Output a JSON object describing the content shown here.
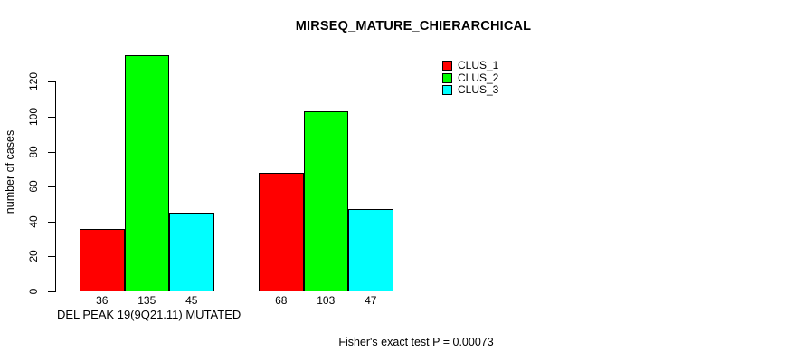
{
  "chart_data": {
    "type": "bar",
    "title": "MIRSEQ_MATURE_CHIERARCHICAL",
    "ylabel": "number of cases",
    "xlabel": "DEL PEAK 19(9Q21.11) MUTATED",
    "ylim": [
      0,
      140
    ],
    "yticks": [
      0,
      20,
      40,
      60,
      80,
      100,
      120
    ],
    "grid": false,
    "legend_position": "top-right",
    "bar_border_color": "#000000",
    "series": [
      {
        "name": "CLUS_1",
        "color": "#ff0000"
      },
      {
        "name": "CLUS_2",
        "color": "#00ff00"
      },
      {
        "name": "CLUS_3",
        "color": "#00ffff"
      }
    ],
    "groups": [
      {
        "name": "DEL PEAK 19(9Q21.11) MUTATED",
        "values": [
          36,
          135,
          45
        ]
      },
      {
        "name": "",
        "values": [
          68,
          103,
          47
        ]
      }
    ]
  },
  "footer": {
    "text": "Fisher's exact test P = 0.00073"
  }
}
